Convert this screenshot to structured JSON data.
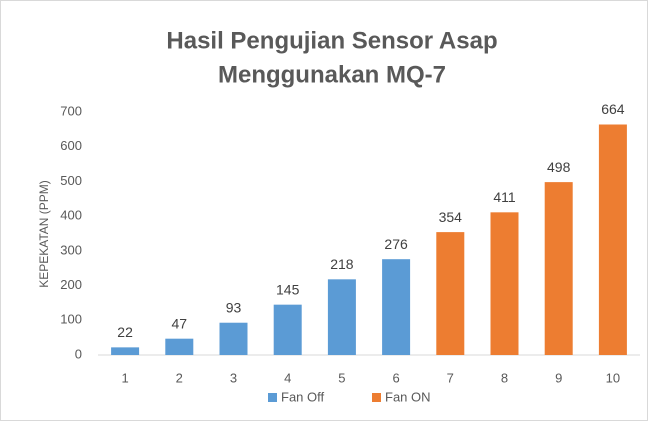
{
  "chart_data": {
    "type": "bar",
    "title": [
      "Hasil Pengujian Sensor Asap",
      "Menggunakan MQ-7"
    ],
    "y_label": "KEPEKATAN (PPM)",
    "categories": [
      "1",
      "2",
      "3",
      "4",
      "5",
      "6",
      "7",
      "8",
      "9",
      "10"
    ],
    "series": [
      {
        "name": "Fan Off",
        "color": "#5b9bd5",
        "values": [
          22,
          47,
          93,
          145,
          218,
          276,
          null,
          null,
          null,
          null
        ]
      },
      {
        "name": "Fan ON",
        "color": "#ed7d31",
        "values": [
          null,
          null,
          null,
          null,
          null,
          null,
          354,
          411,
          498,
          664
        ]
      }
    ],
    "ylim": [
      0,
      700
    ],
    "yticks": [
      0,
      100,
      200,
      300,
      400,
      500,
      600,
      700
    ],
    "grid": false,
    "legend": "bottom"
  }
}
